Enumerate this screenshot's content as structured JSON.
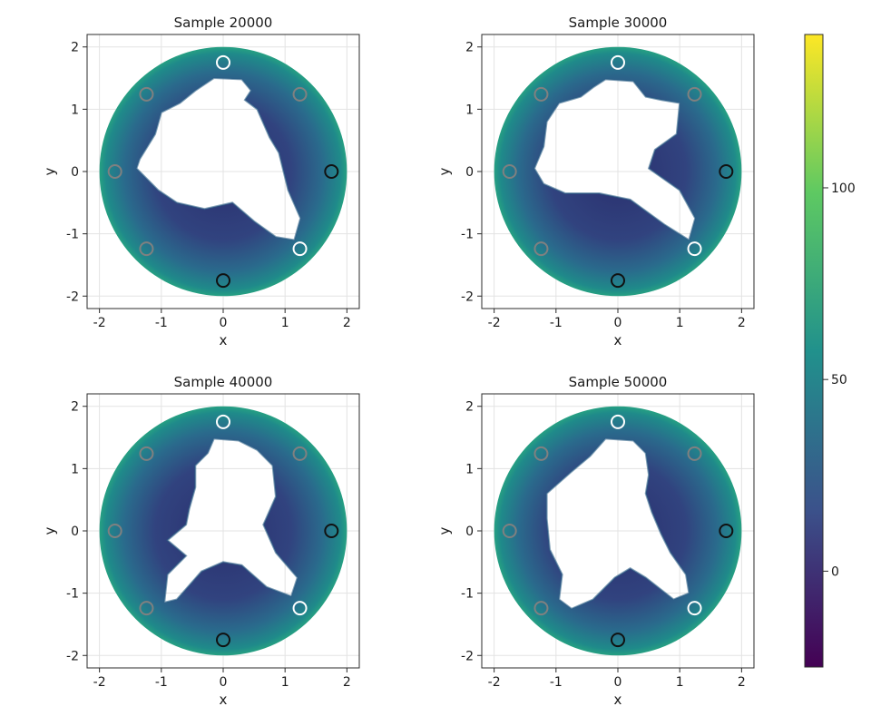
{
  "chart_data": {
    "type": "heatmap",
    "panels": [
      {
        "title": "Sample 20000",
        "xlabel": "x",
        "ylabel": "y",
        "xlim": [
          -2.2,
          2.2
        ],
        "ylim": [
          -2.2,
          2.2
        ],
        "xticks": [
          -2,
          -1,
          0,
          1,
          2
        ],
        "yticks": [
          -2,
          -1,
          0,
          1,
          2
        ],
        "xtick_labels": [
          "-2",
          "-1",
          "0",
          "1",
          "2"
        ],
        "ytick_labels": [
          "-2",
          "-1",
          "0",
          "1",
          "2"
        ],
        "domain_radius": 2.0,
        "hole_boundary": [
          [
            -0.15,
            1.5
          ],
          [
            0.3,
            1.48
          ],
          [
            0.45,
            1.3
          ],
          [
            0.35,
            1.15
          ],
          [
            0.55,
            1.0
          ],
          [
            0.75,
            0.55
          ],
          [
            0.9,
            0.3
          ],
          [
            1.05,
            -0.3
          ],
          [
            1.25,
            -0.75
          ],
          [
            1.15,
            -1.1
          ],
          [
            0.85,
            -1.05
          ],
          [
            0.5,
            -0.8
          ],
          [
            0.15,
            -0.5
          ],
          [
            -0.3,
            -0.6
          ],
          [
            -0.75,
            -0.5
          ],
          [
            -1.05,
            -0.3
          ],
          [
            -1.4,
            0.05
          ],
          [
            -1.35,
            0.2
          ],
          [
            -1.1,
            0.6
          ],
          [
            -1.0,
            0.95
          ],
          [
            -0.7,
            1.1
          ],
          [
            -0.45,
            1.3
          ]
        ]
      },
      {
        "title": "Sample 30000",
        "xlabel": "x",
        "ylabel": "y",
        "xlim": [
          -2.2,
          2.2
        ],
        "ylim": [
          -2.2,
          2.2
        ],
        "xticks": [
          -2,
          -1,
          0,
          1,
          2
        ],
        "yticks": [
          -2,
          -1,
          0,
          1,
          2
        ],
        "xtick_labels": [
          "-2",
          "-1",
          "0",
          "1",
          "2"
        ],
        "ytick_labels": [
          "-2",
          "-1",
          "0",
          "1",
          "2"
        ],
        "domain_radius": 2.0,
        "hole_boundary": [
          [
            -0.2,
            1.48
          ],
          [
            0.25,
            1.45
          ],
          [
            0.45,
            1.2
          ],
          [
            0.7,
            1.15
          ],
          [
            1.0,
            1.1
          ],
          [
            0.95,
            0.6
          ],
          [
            0.6,
            0.35
          ],
          [
            0.5,
            0.05
          ],
          [
            1.0,
            -0.3
          ],
          [
            1.25,
            -0.75
          ],
          [
            1.15,
            -1.1
          ],
          [
            0.75,
            -0.85
          ],
          [
            0.2,
            -0.45
          ],
          [
            -0.3,
            -0.35
          ],
          [
            -0.85,
            -0.35
          ],
          [
            -1.2,
            -0.2
          ],
          [
            -1.35,
            0.05
          ],
          [
            -1.2,
            0.4
          ],
          [
            -1.15,
            0.8
          ],
          [
            -0.95,
            1.1
          ],
          [
            -0.6,
            1.2
          ],
          [
            -0.4,
            1.35
          ]
        ]
      },
      {
        "title": "Sample 40000",
        "xlabel": "x",
        "ylabel": "y",
        "xlim": [
          -2.2,
          2.2
        ],
        "ylim": [
          -2.2,
          2.2
        ],
        "xticks": [
          -2,
          -1,
          0,
          1,
          2
        ],
        "yticks": [
          -2,
          -1,
          0,
          1,
          2
        ],
        "xtick_labels": [
          "-2",
          "-1",
          "0",
          "1",
          "2"
        ],
        "ytick_labels": [
          "-2",
          "-1",
          "0",
          "1",
          "2"
        ],
        "domain_radius": 2.0,
        "hole_boundary": [
          [
            -0.15,
            1.48
          ],
          [
            0.25,
            1.45
          ],
          [
            0.55,
            1.3
          ],
          [
            0.8,
            1.05
          ],
          [
            0.85,
            0.55
          ],
          [
            0.65,
            0.1
          ],
          [
            0.85,
            -0.35
          ],
          [
            1.2,
            -0.75
          ],
          [
            1.1,
            -1.05
          ],
          [
            0.7,
            -0.9
          ],
          [
            0.3,
            -0.55
          ],
          [
            0.0,
            -0.5
          ],
          [
            -0.35,
            -0.65
          ],
          [
            -0.75,
            -1.1
          ],
          [
            -0.95,
            -1.15
          ],
          [
            -0.9,
            -0.7
          ],
          [
            -0.6,
            -0.4
          ],
          [
            -0.9,
            -0.15
          ],
          [
            -0.6,
            0.1
          ],
          [
            -0.55,
            0.35
          ],
          [
            -0.45,
            0.7
          ],
          [
            -0.45,
            1.05
          ],
          [
            -0.25,
            1.25
          ]
        ]
      },
      {
        "title": "Sample 50000",
        "xlabel": "x",
        "ylabel": "y",
        "xlim": [
          -2.2,
          2.2
        ],
        "ylim": [
          -2.2,
          2.2
        ],
        "xticks": [
          -2,
          -1,
          0,
          1,
          2
        ],
        "yticks": [
          -2,
          -1,
          0,
          1,
          2
        ],
        "xtick_labels": [
          "-2",
          "-1",
          "0",
          "1",
          "2"
        ],
        "ytick_labels": [
          "-2",
          "-1",
          "0",
          "1",
          "2"
        ],
        "domain_radius": 2.0,
        "hole_boundary": [
          [
            -0.2,
            1.48
          ],
          [
            0.25,
            1.45
          ],
          [
            0.45,
            1.25
          ],
          [
            0.5,
            0.9
          ],
          [
            0.45,
            0.6
          ],
          [
            0.55,
            0.3
          ],
          [
            0.7,
            -0.05
          ],
          [
            0.85,
            -0.35
          ],
          [
            1.1,
            -0.7
          ],
          [
            1.15,
            -1.0
          ],
          [
            0.9,
            -1.1
          ],
          [
            0.45,
            -0.75
          ],
          [
            0.2,
            -0.6
          ],
          [
            -0.05,
            -0.75
          ],
          [
            -0.4,
            -1.1
          ],
          [
            -0.75,
            -1.25
          ],
          [
            -0.95,
            -1.1
          ],
          [
            -0.9,
            -0.7
          ],
          [
            -1.1,
            -0.3
          ],
          [
            -1.15,
            0.2
          ],
          [
            -1.15,
            0.6
          ],
          [
            -0.75,
            0.95
          ],
          [
            -0.45,
            1.2
          ]
        ]
      }
    ],
    "markers": [
      {
        "x": 0.0,
        "y": 1.75,
        "color": "#ffffff"
      },
      {
        "x": 1.24,
        "y": -1.24,
        "color": "#ffffff"
      },
      {
        "x": 1.75,
        "y": 0.0,
        "color": "#111111"
      },
      {
        "x": 0.0,
        "y": -1.75,
        "color": "#111111"
      },
      {
        "x": -1.24,
        "y": 1.24,
        "color": "#808080"
      },
      {
        "x": 1.24,
        "y": 1.24,
        "color": "#808080"
      },
      {
        "x": -1.75,
        "y": 0.0,
        "color": "#808080"
      },
      {
        "x": -1.24,
        "y": -1.24,
        "color": "#808080"
      }
    ],
    "colorbar": {
      "colormap": "viridis",
      "range": [
        -25,
        140
      ],
      "ticks": [
        0,
        50,
        100
      ],
      "tick_labels": [
        "0",
        "50",
        "100"
      ],
      "colors": [
        "#440154",
        "#3b528b",
        "#21918c",
        "#5ec962",
        "#fde725"
      ]
    }
  }
}
